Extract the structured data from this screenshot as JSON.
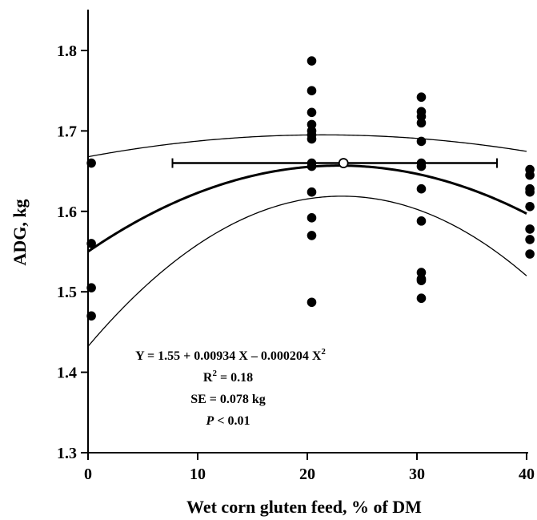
{
  "chart_data": {
    "type": "scatter",
    "title": "",
    "xlabel": "Wet corn gluten feed, % of DM",
    "ylabel": "ADG, kg",
    "xlim": [
      0,
      40
    ],
    "ylim": [
      1.3,
      1.85
    ],
    "xticks": [
      "0",
      "10",
      "20",
      "30",
      "40"
    ],
    "yticks": [
      "1.3",
      "1.4",
      "1.5",
      "1.6",
      "1.7",
      "1.8"
    ],
    "grid": false,
    "points": {
      "x": [
        0.3,
        0.3,
        0.3,
        0.3,
        20.4,
        20.4,
        20.4,
        20.4,
        20.4,
        20.4,
        20.4,
        20.4,
        20.4,
        20.4,
        20.4,
        20.4,
        20.4,
        30.4,
        30.4,
        30.4,
        30.4,
        30.4,
        30.4,
        30.4,
        30.4,
        30.4,
        30.4,
        30.4,
        30.4,
        30.4,
        40.3,
        40.3,
        40.3,
        40.3,
        40.3,
        40.3,
        40.3,
        40.3
      ],
      "y": [
        1.66,
        1.56,
        1.505,
        1.47,
        1.787,
        1.75,
        1.723,
        1.708,
        1.7,
        1.695,
        1.69,
        1.66,
        1.656,
        1.624,
        1.592,
        1.57,
        1.487,
        1.742,
        1.724,
        1.718,
        1.71,
        1.687,
        1.66,
        1.656,
        1.628,
        1.588,
        1.524,
        1.516,
        1.514,
        1.492,
        1.652,
        1.645,
        1.628,
        1.624,
        1.606,
        1.578,
        1.565,
        1.547
      ]
    },
    "fit_equation": {
      "a": 1.55,
      "b": 0.00934,
      "c": -0.000204,
      "x_range": [
        0,
        40
      ]
    },
    "confidence_band": {
      "se": 0.038,
      "xbar": 23.5,
      "x_range": [
        0,
        40
      ]
    },
    "optimum": {
      "x": 23.3,
      "y": 1.66,
      "ci_x": [
        7.7,
        37.3
      ]
    },
    "annotations": {
      "equation_prefix": "Y = 1.55 + 0.00934 X – 0.000204 X",
      "equation_exp": "2",
      "r2_prefix": "R",
      "r2_exp": "2",
      "r2_suffix": " = 0.18",
      "se": "SE = 0.078 kg",
      "p_italic": "P",
      "p_suffix": " < 0.01"
    }
  }
}
